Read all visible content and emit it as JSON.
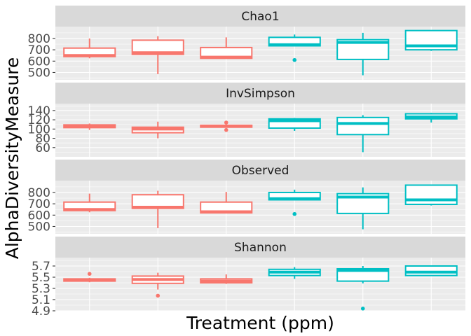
{
  "chart_data": {
    "type": "boxplot",
    "title": "",
    "xlabel": "Treatment (ppm)",
    "ylabel": "AlphaDiversityMeasure",
    "x_tick_labels_shown": false,
    "legend": "none",
    "grid": true,
    "group_colors": [
      "#f8766d",
      "#f8766d",
      "#f8766d",
      "#00bfc4",
      "#00bfc4",
      "#00bfc4"
    ],
    "facets": [
      {
        "name": "Chao1",
        "ylim": [
          435,
          905
        ],
        "yticks": [
          500,
          600,
          700,
          800
        ],
        "boxes": [
          {
            "min": 625,
            "q1": 640,
            "median": 650,
            "q3": 715,
            "max": 800,
            "outliers": []
          },
          {
            "min": 485,
            "q1": 660,
            "median": 675,
            "q3": 785,
            "max": 820,
            "outliers": []
          },
          {
            "min": 620,
            "q1": 625,
            "median": 635,
            "q3": 720,
            "max": 810,
            "outliers": []
          },
          {
            "min": 735,
            "q1": 735,
            "median": 745,
            "q3": 810,
            "max": 835,
            "outliers": [
              610
            ]
          },
          {
            "min": 475,
            "q1": 615,
            "median": 765,
            "q3": 790,
            "max": 850,
            "outliers": []
          },
          {
            "min": 690,
            "q1": 700,
            "median": 735,
            "q3": 870,
            "max": 870,
            "outliers": []
          }
        ]
      },
      {
        "name": "InvSimpson",
        "ylim": [
          40,
          155
        ],
        "yticks": [
          60,
          80,
          100,
          120,
          140
        ],
        "boxes": [
          {
            "min": 98,
            "q1": 103,
            "median": 106,
            "q3": 109,
            "max": 112,
            "outliers": []
          },
          {
            "min": 80,
            "q1": 92,
            "median": 100,
            "q3": 104,
            "max": 116,
            "outliers": []
          },
          {
            "min": 103,
            "q1": 104,
            "median": 106,
            "q3": 108,
            "max": 110,
            "outliers": [
              114,
              98
            ]
          },
          {
            "min": 96,
            "q1": 102,
            "median": 118,
            "q3": 122,
            "max": 124,
            "outliers": []
          },
          {
            "min": 50,
            "q1": 88,
            "median": 112,
            "q3": 125,
            "max": 130,
            "outliers": []
          },
          {
            "min": 114,
            "q1": 122,
            "median": 126,
            "q3": 133,
            "max": 135,
            "outliers": []
          }
        ]
      },
      {
        "name": "Observed",
        "ylim": [
          435,
          905
        ],
        "yticks": [
          500,
          600,
          700,
          800
        ],
        "boxes": [
          {
            "min": 625,
            "q1": 640,
            "median": 650,
            "q3": 715,
            "max": 790,
            "outliers": []
          },
          {
            "min": 485,
            "q1": 660,
            "median": 670,
            "q3": 780,
            "max": 815,
            "outliers": []
          },
          {
            "min": 615,
            "q1": 620,
            "median": 630,
            "q3": 715,
            "max": 805,
            "outliers": []
          },
          {
            "min": 735,
            "q1": 735,
            "median": 745,
            "q3": 800,
            "max": 825,
            "outliers": [
              610
            ]
          },
          {
            "min": 475,
            "q1": 615,
            "median": 760,
            "q3": 790,
            "max": 845,
            "outliers": []
          },
          {
            "min": 685,
            "q1": 695,
            "median": 735,
            "q3": 865,
            "max": 865,
            "outliers": []
          }
        ]
      },
      {
        "name": "Shannon",
        "ylim": [
          4.9,
          5.85
        ],
        "yticks": [
          4.9,
          5.1,
          5.3,
          5.5,
          5.7
        ],
        "boxes": [
          {
            "min": 5.41,
            "q1": 5.43,
            "median": 5.45,
            "q3": 5.47,
            "max": 5.49,
            "outliers": [
              5.56
            ]
          },
          {
            "min": 5.28,
            "q1": 5.39,
            "median": 5.46,
            "q3": 5.52,
            "max": 5.58,
            "outliers": [
              5.17
            ]
          },
          {
            "min": 5.38,
            "q1": 5.4,
            "median": 5.43,
            "q3": 5.47,
            "max": 5.55,
            "outliers": []
          },
          {
            "min": 5.47,
            "q1": 5.53,
            "median": 5.59,
            "q3": 5.64,
            "max": 5.68,
            "outliers": []
          },
          {
            "min": 5.39,
            "q1": 5.43,
            "median": 5.62,
            "q3": 5.65,
            "max": 5.7,
            "outliers": [
              4.94
            ]
          },
          {
            "min": 5.52,
            "q1": 5.53,
            "median": 5.59,
            "q3": 5.7,
            "max": 5.7,
            "outliers": []
          }
        ]
      }
    ]
  }
}
